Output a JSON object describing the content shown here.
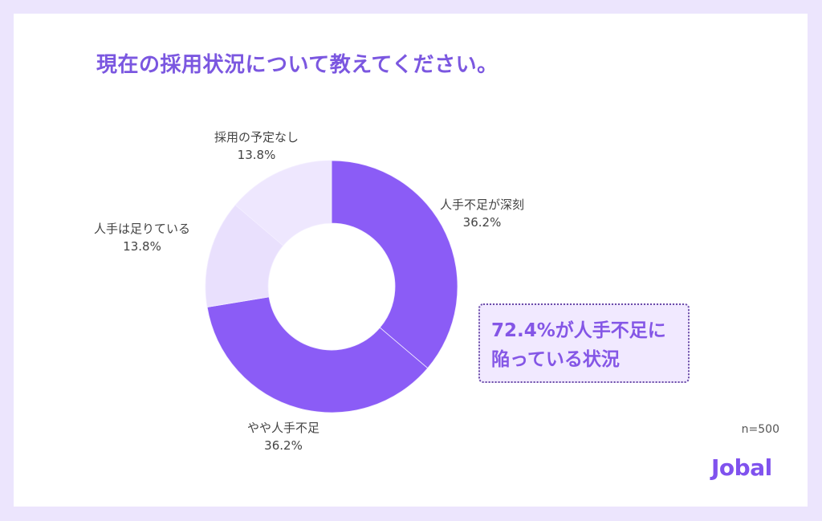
{
  "title": "現在の採用状況について教えてください。",
  "chart_data": {
    "type": "pie",
    "variant": "donut",
    "title": "現在の採用状況について教えてください。",
    "categories": [
      "人手不足が深刻",
      "やや人手不足",
      "人手は足りている",
      "採用の予定なし"
    ],
    "values": [
      36.2,
      36.2,
      13.8,
      13.8
    ],
    "unit": "%",
    "colors": [
      "#8B5CF6",
      "#8B5CF6",
      "#E9E0FD",
      "#EEE7FE"
    ],
    "start_angle": "top, clockwise",
    "sample_size": "n=500",
    "legend": "none (direct labels)"
  },
  "labels": [
    {
      "name": "人手不足が深刻",
      "pct": "36.2%"
    },
    {
      "name": "やや人手不足",
      "pct": "36.2%"
    },
    {
      "name": "人手は足りている",
      "pct": "13.8%"
    },
    {
      "name": "採用の予定なし",
      "pct": "13.8%"
    }
  ],
  "callout": {
    "line1": "72.4%が人手不足に",
    "line2": "陥っている状況"
  },
  "sample_size": "n=500",
  "logo": "Jobal",
  "colors": {
    "background": "#ECE5FD",
    "accent": "#8B5CF6",
    "title": "#7B57E0"
  }
}
